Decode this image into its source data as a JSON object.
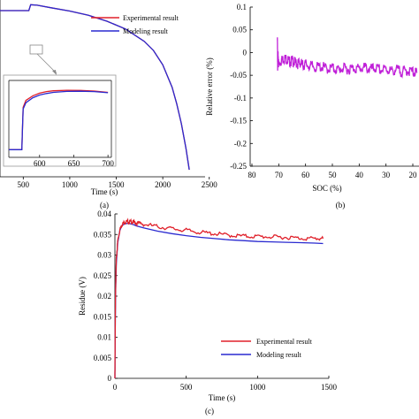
{
  "chart_data": [
    {
      "panel": "a",
      "type": "line",
      "caption": "(a)",
      "xlabel": "Time (s)",
      "ylabel": "",
      "x_ticks": [
        "500",
        "1000",
        "1500",
        "2000",
        "2500"
      ],
      "xlim": [
        250,
        2550
      ],
      "grid": false,
      "legend_position": "top-right",
      "series": [
        {
          "name": "Experimental result",
          "color": "#e0202a",
          "x": [
            250,
            500,
            560,
            580,
            650,
            800,
            1000,
            1200,
            1400,
            1600,
            1800,
            1900,
            2000,
            2100,
            2150,
            2200,
            2250,
            2285
          ],
          "y": [
            0.705,
            0.705,
            0.705,
            0.73,
            0.728,
            0.717,
            0.703,
            0.685,
            0.66,
            0.627,
            0.575,
            0.536,
            0.475,
            0.38,
            0.31,
            0.225,
            0.12,
            0.03
          ]
        },
        {
          "name": "Modeling result",
          "color": "#2a2ad0",
          "x": [
            250,
            500,
            560,
            580,
            650,
            800,
            1000,
            1200,
            1400,
            1600,
            1800,
            1900,
            2000,
            2100,
            2150,
            2200,
            2250,
            2285
          ],
          "y": [
            0.705,
            0.705,
            0.705,
            0.73,
            0.728,
            0.717,
            0.703,
            0.685,
            0.66,
            0.627,
            0.575,
            0.536,
            0.475,
            0.38,
            0.31,
            0.225,
            0.12,
            0.03
          ]
        }
      ],
      "inset": {
        "x_ticks": [
          "600",
          "650",
          "700"
        ],
        "xlim": [
          555,
          705
        ],
        "series": [
          {
            "name": "Experimental result",
            "color": "#e0202a",
            "x": [
              555,
              574,
              575,
              576,
              580,
              590,
              600,
              610,
              620,
              640,
              660,
              680,
              700
            ],
            "y": [
              0.1,
              0.1,
              0.4,
              0.65,
              0.74,
              0.8,
              0.835,
              0.855,
              0.866,
              0.872,
              0.87,
              0.862,
              0.845
            ]
          },
          {
            "name": "Modeling result",
            "color": "#2a2ad0",
            "x": [
              555,
              574,
              575,
              576,
              580,
              590,
              600,
              610,
              620,
              640,
              660,
              680,
              700
            ],
            "y": [
              0.1,
              0.1,
              0.4,
              0.63,
              0.71,
              0.775,
              0.81,
              0.83,
              0.845,
              0.858,
              0.86,
              0.855,
              0.84
            ]
          }
        ]
      }
    },
    {
      "panel": "b",
      "type": "line",
      "caption": "(b)",
      "xlabel": "SOC (%)",
      "ylabel": "Relative error (%)",
      "x_ticks": [
        "80",
        "70",
        "60",
        "50",
        "40",
        "30",
        "20"
      ],
      "y_ticks": [
        "0.1",
        "0.05",
        "0",
        "-0.05",
        "-0.1",
        "-0.15",
        "-0.2",
        "-0.25"
      ],
      "xlim": [
        80,
        18
      ],
      "ylim": [
        -0.25,
        0.1
      ],
      "x_reversed": true,
      "grid": false,
      "series": [
        {
          "name": "",
          "color": "#c020d8",
          "x": [
            70.5,
            70.4,
            70.3,
            70.2,
            70,
            69,
            68,
            67,
            66,
            65,
            64,
            63,
            62,
            61,
            60,
            58,
            56,
            54,
            52,
            50,
            48,
            46,
            44,
            42,
            40,
            38,
            36,
            34,
            32,
            30,
            28,
            26,
            24,
            22,
            20,
            18.5
          ],
          "y": [
            0.027,
            -0.03,
            0.0,
            -0.02,
            -0.025,
            -0.018,
            -0.012,
            -0.015,
            -0.02,
            -0.018,
            -0.022,
            -0.025,
            -0.022,
            -0.028,
            -0.026,
            -0.03,
            -0.033,
            -0.031,
            -0.036,
            -0.034,
            -0.038,
            -0.035,
            -0.037,
            -0.034,
            -0.036,
            -0.033,
            -0.037,
            -0.035,
            -0.039,
            -0.036,
            -0.041,
            -0.038,
            -0.042,
            -0.04,
            -0.043,
            -0.045
          ]
        }
      ]
    },
    {
      "panel": "c",
      "type": "line",
      "caption": "(c)",
      "xlabel": "Time (s)",
      "ylabel": "Residue (V)",
      "x_ticks": [
        "0",
        "500",
        "1000",
        "1500"
      ],
      "y_ticks": [
        "0",
        "0.005",
        "0.01",
        "0.015",
        "0.02",
        "0.025",
        "0.03",
        "0.035",
        "0.04"
      ],
      "xlim": [
        0,
        1500
      ],
      "ylim": [
        0,
        0.04
      ],
      "grid": false,
      "legend_position": "bottom-right",
      "series": [
        {
          "name": "Experimental result",
          "color": "#e0202a",
          "x": [
            0,
            2,
            5,
            10,
            20,
            35,
            50,
            70,
            90,
            110,
            130,
            150,
            200,
            300,
            400,
            500,
            600,
            700,
            800,
            900,
            1000,
            1100,
            1200,
            1300,
            1400,
            1460
          ],
          "y": [
            0.0,
            0.012,
            0.022,
            0.029,
            0.0335,
            0.0362,
            0.0375,
            0.038,
            0.0381,
            0.0381,
            0.038,
            0.0378,
            0.0375,
            0.0369,
            0.0364,
            0.036,
            0.0355,
            0.0352,
            0.0348,
            0.0346,
            0.0345,
            0.0344,
            0.0343,
            0.0341,
            0.034,
            0.034
          ]
        },
        {
          "name": "Modeling result",
          "color": "#2a2ad0",
          "x": [
            0,
            2,
            5,
            10,
            20,
            35,
            50,
            70,
            90,
            110,
            130,
            150,
            200,
            300,
            400,
            500,
            600,
            700,
            800,
            900,
            1000,
            1100,
            1200,
            1300,
            1400,
            1460
          ],
          "y": [
            0.0,
            0.011,
            0.021,
            0.028,
            0.033,
            0.036,
            0.0372,
            0.0376,
            0.0377,
            0.0376,
            0.0374,
            0.0371,
            0.0366,
            0.0358,
            0.0352,
            0.0347,
            0.0343,
            0.034,
            0.0337,
            0.0335,
            0.0333,
            0.0332,
            0.0331,
            0.033,
            0.0329,
            0.0328
          ]
        }
      ]
    }
  ]
}
